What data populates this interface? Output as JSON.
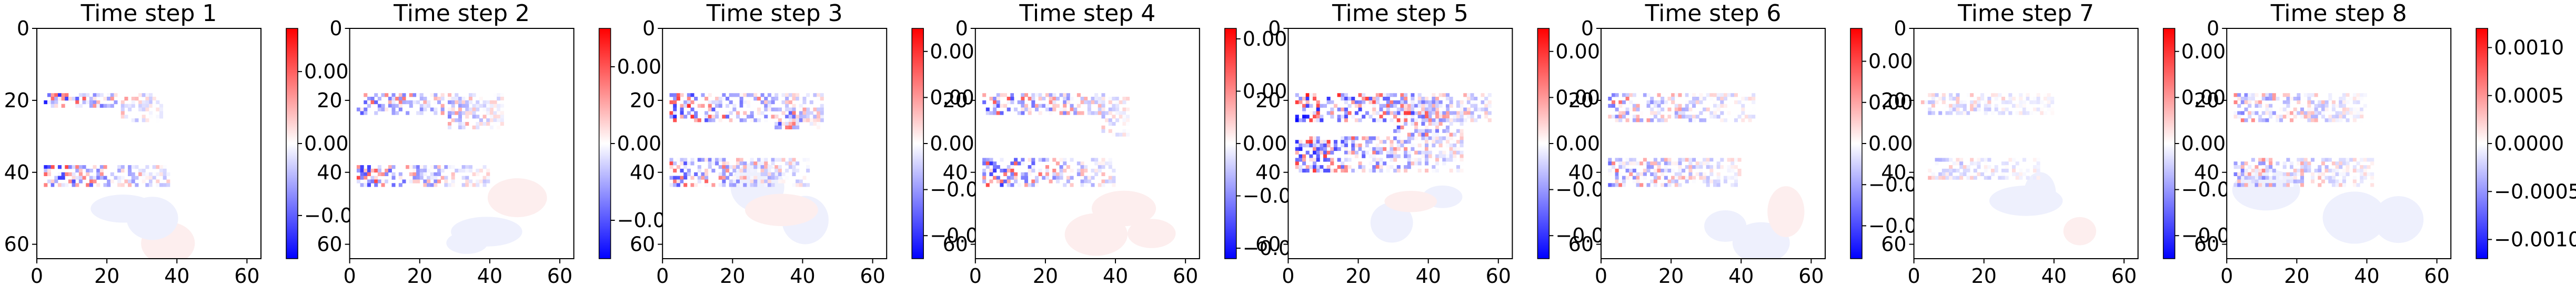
{
  "chart_data": [
    {
      "type": "heatmap",
      "title": "Time step 1",
      "xticks": [
        "0",
        "20",
        "40",
        "60"
      ],
      "yticks": [
        "0",
        "20",
        "40",
        "60"
      ],
      "xlim": [
        0,
        64
      ],
      "ylim": [
        0,
        64
      ],
      "colormap": "bwr",
      "colorbar": {
        "vmin": -0.0016,
        "vmax": 0.0016,
        "ticks": [
          {
            "v": 0.001,
            "label": "0.001"
          },
          {
            "v": 0,
            "label": "0.000"
          },
          {
            "v": -0.001,
            "label": "−0.001"
          }
        ]
      },
      "features": [
        {
          "x": [
            2,
            34
          ],
          "y": [
            18,
            22
          ],
          "level": 0.9
        },
        {
          "x": [
            2,
            38
          ],
          "y": [
            38,
            44
          ],
          "level": 0.85
        },
        {
          "x": [
            24,
            36
          ],
          "y": [
            20,
            26
          ],
          "level": 0.35
        }
      ]
    },
    {
      "type": "heatmap",
      "title": "Time step 2",
      "xticks": [
        "0",
        "20",
        "40",
        "60"
      ],
      "yticks": [
        "0",
        "20",
        "40",
        "60"
      ],
      "xlim": [
        0,
        64
      ],
      "ylim": [
        0,
        64
      ],
      "colormap": "bwr",
      "colorbar": {
        "vmin": -0.0003,
        "vmax": 0.0003,
        "ticks": [
          {
            "v": 0.0002,
            "label": "0.0002"
          },
          {
            "v": 0,
            "label": "0.0000"
          },
          {
            "v": -0.0002,
            "label": "−0.0002"
          }
        ]
      },
      "features": [
        {
          "x": [
            2,
            44
          ],
          "y": [
            18,
            24
          ],
          "level": 0.7
        },
        {
          "x": [
            2,
            40
          ],
          "y": [
            38,
            44
          ],
          "level": 0.8
        },
        {
          "x": [
            28,
            44
          ],
          "y": [
            20,
            28
          ],
          "level": 0.5
        }
      ]
    },
    {
      "type": "heatmap",
      "title": "Time step 3",
      "xticks": [
        "0",
        "20",
        "40",
        "60"
      ],
      "yticks": [
        "0",
        "20",
        "40",
        "60"
      ],
      "xlim": [
        0,
        64
      ],
      "ylim": [
        0,
        64
      ],
      "colormap": "bwr",
      "colorbar": {
        "vmin": -0.0005,
        "vmax": 0.0005,
        "ticks": [
          {
            "v": 0.0004,
            "label": "0.0004"
          },
          {
            "v": 0.0002,
            "label": "0.0002"
          },
          {
            "v": 0,
            "label": "0.0000"
          },
          {
            "v": -0.0002,
            "label": "−0.0002"
          },
          {
            "v": -0.0004,
            "label": "−0.0004"
          }
        ]
      },
      "features": [
        {
          "x": [
            2,
            46
          ],
          "y": [
            18,
            26
          ],
          "level": 0.9
        },
        {
          "x": [
            2,
            42
          ],
          "y": [
            36,
            44
          ],
          "level": 0.75
        },
        {
          "x": [
            32,
            46
          ],
          "y": [
            22,
            28
          ],
          "level": 0.8
        }
      ]
    },
    {
      "type": "heatmap",
      "title": "Time step 4",
      "xticks": [
        "0",
        "20",
        "40",
        "60"
      ],
      "yticks": [
        "0",
        "20",
        "40",
        "60"
      ],
      "xlim": [
        0,
        64
      ],
      "ylim": [
        0,
        64
      ],
      "colormap": "bwr",
      "colorbar": {
        "vmin": -0.0011,
        "vmax": 0.0011,
        "ticks": [
          {
            "v": 0.001,
            "label": "0.0010"
          },
          {
            "v": 0.0005,
            "label": "0.0005"
          },
          {
            "v": 0,
            "label": "0.0000"
          },
          {
            "v": -0.0005,
            "label": "−0.0005"
          },
          {
            "v": -0.001,
            "label": "−0.0010"
          }
        ]
      },
      "features": [
        {
          "x": [
            2,
            44
          ],
          "y": [
            18,
            24
          ],
          "level": 0.8
        },
        {
          "x": [
            2,
            40
          ],
          "y": [
            36,
            44
          ],
          "level": 0.85
        },
        {
          "x": [
            36,
            44
          ],
          "y": [
            24,
            30
          ],
          "level": 0.3
        }
      ]
    },
    {
      "type": "heatmap",
      "title": "Time step 5",
      "xticks": [
        "0",
        "20",
        "40",
        "60"
      ],
      "yticks": [
        "0",
        "20",
        "40",
        "60"
      ],
      "xlim": [
        0,
        64
      ],
      "ylim": [
        0,
        64
      ],
      "colormap": "bwr",
      "colorbar": {
        "vmin": -0.00025,
        "vmax": 0.00025,
        "ticks": [
          {
            "v": 0.0002,
            "label": "0.0002"
          },
          {
            "v": 0.0001,
            "label": "0.0001"
          },
          {
            "v": 0,
            "label": "0.0000"
          },
          {
            "v": -0.0001,
            "label": "−0.0001"
          },
          {
            "v": -0.0002,
            "label": "−0.0002"
          }
        ]
      },
      "features": [
        {
          "x": [
            2,
            58
          ],
          "y": [
            18,
            26
          ],
          "level": 1.0
        },
        {
          "x": [
            2,
            50
          ],
          "y": [
            30,
            40
          ],
          "level": 0.9
        },
        {
          "x": [
            30,
            50
          ],
          "y": [
            20,
            30
          ],
          "level": 0.95
        }
      ]
    },
    {
      "type": "heatmap",
      "title": "Time step 6",
      "xticks": [
        "0",
        "20",
        "40",
        "60"
      ],
      "yticks": [
        "0",
        "20",
        "40",
        "60"
      ],
      "xlim": [
        0,
        64
      ],
      "ylim": [
        0,
        64
      ],
      "colormap": "bwr",
      "colorbar": {
        "vmin": -0.0007,
        "vmax": 0.0007,
        "ticks": [
          {
            "v": 0.0005,
            "label": "0.00050"
          },
          {
            "v": 0.00025,
            "label": "0.00025"
          },
          {
            "v": 0,
            "label": "0.00000"
          },
          {
            "v": -0.00025,
            "label": "−0.00025"
          },
          {
            "v": -0.0005,
            "label": "−0.00050"
          }
        ]
      },
      "features": [
        {
          "x": [
            2,
            44
          ],
          "y": [
            18,
            26
          ],
          "level": 0.6
        },
        {
          "x": [
            2,
            40
          ],
          "y": [
            36,
            44
          ],
          "level": 0.6
        }
      ]
    },
    {
      "type": "heatmap",
      "title": "Time step 7",
      "xticks": [
        "0",
        "20",
        "40",
        "60"
      ],
      "yticks": [
        "0",
        "20",
        "40",
        "60"
      ],
      "xlim": [
        0,
        64
      ],
      "ylim": [
        0,
        64
      ],
      "colormap": "bwr",
      "colorbar": {
        "vmin": -0.0005,
        "vmax": 0.0005,
        "ticks": [
          {
            "v": 0.0004,
            "label": "0.0004"
          },
          {
            "v": 0.0002,
            "label": "0.0002"
          },
          {
            "v": 0,
            "label": "0.0000"
          },
          {
            "v": -0.0002,
            "label": "−0.0002"
          },
          {
            "v": -0.0004,
            "label": "−0.0004"
          }
        ]
      },
      "features": [
        {
          "x": [
            2,
            40
          ],
          "y": [
            18,
            24
          ],
          "level": 0.35
        },
        {
          "x": [
            4,
            36
          ],
          "y": [
            36,
            42
          ],
          "level": 0.35
        }
      ]
    },
    {
      "type": "heatmap",
      "title": "Time step 8",
      "xticks": [
        "0",
        "20",
        "40",
        "60"
      ],
      "yticks": [
        "0",
        "20",
        "40",
        "60"
      ],
      "xlim": [
        0,
        64
      ],
      "ylim": [
        0,
        64
      ],
      "colormap": "bwr",
      "colorbar": {
        "vmin": -0.0012,
        "vmax": 0.0012,
        "ticks": [
          {
            "v": 0.001,
            "label": "0.0010"
          },
          {
            "v": 0.0005,
            "label": "0.0005"
          },
          {
            "v": 0,
            "label": "0.0000"
          },
          {
            "v": -0.0005,
            "label": "−0.0005"
          },
          {
            "v": -0.001,
            "label": "−0.0010"
          }
        ]
      },
      "features": [
        {
          "x": [
            2,
            40
          ],
          "y": [
            18,
            26
          ],
          "level": 0.55
        },
        {
          "x": [
            2,
            42
          ],
          "y": [
            36,
            44
          ],
          "level": 0.55
        }
      ]
    }
  ]
}
